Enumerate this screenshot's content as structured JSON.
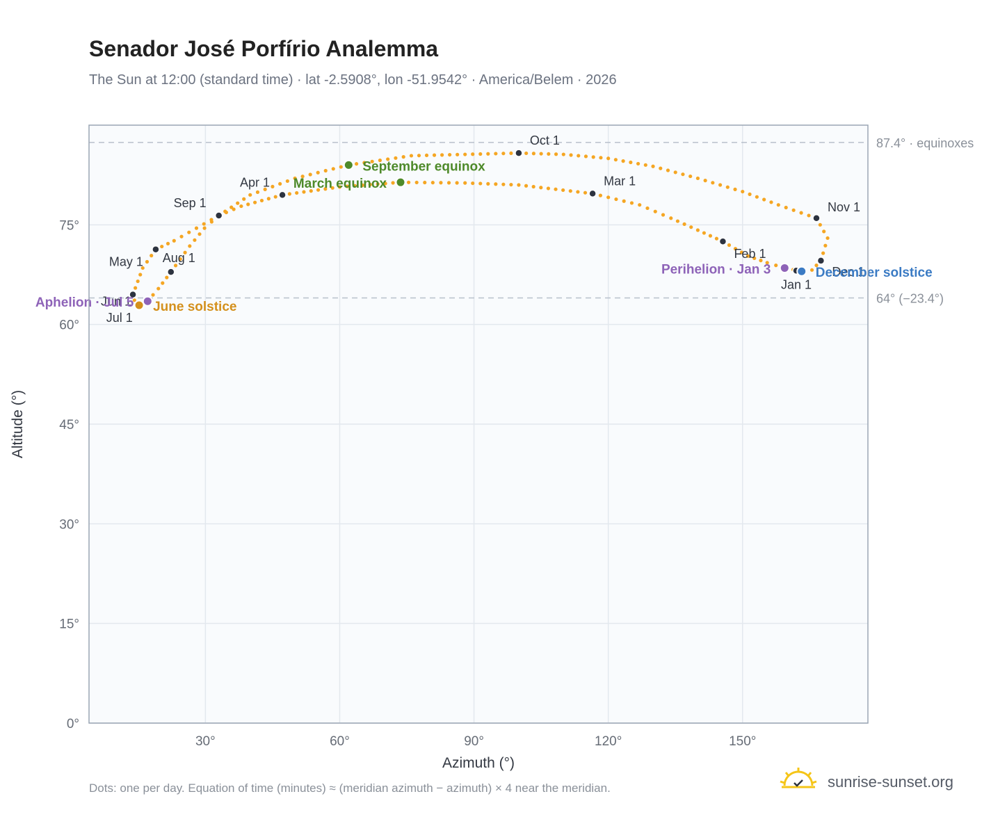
{
  "header": {
    "title": "Senador José Porfírio Analemma",
    "subtitle": "The Sun at 12:00 (standard time) · lat -2.5908°, lon -51.9542° · America/Belem · 2026"
  },
  "footer": {
    "note": "Dots: one per day. Equation of time (minutes) ≈ (meridian azimuth − azimuth) × 4 near the meridian.",
    "brand": "sunrise-sunset.org"
  },
  "colors": {
    "curve": "#f5a623",
    "month_dot": "#2d3340",
    "equinox": "#4e8a2a",
    "june_solstice": "#d4901c",
    "december_solstice": "#3b7bc4",
    "apsis": "#8e63b8",
    "grid": "#e3e8ee",
    "plot_bg": "#f9fbfd",
    "border": "#9aa5b4"
  },
  "chart_data": {
    "type": "scatter",
    "xlabel": "Azimuth (°)",
    "ylabel": "Altitude (°)",
    "xlim": [
      4,
      178
    ],
    "ylim": [
      0,
      90
    ],
    "xticks": [
      30,
      60,
      90,
      120,
      150
    ],
    "yticks": [
      0,
      15,
      30,
      45,
      60,
      75
    ],
    "xtick_labels": [
      "30°",
      "60°",
      "90°",
      "120°",
      "150°"
    ],
    "ytick_labels": [
      "0°",
      "15°",
      "30°",
      "45°",
      "60°",
      "75°"
    ],
    "grid": true,
    "reference_lines": [
      {
        "y": 87.4,
        "label": "87.4° · equinoxes"
      },
      {
        "y": 64.0,
        "label": "64° (−23.4°)"
      }
    ],
    "series": [
      {
        "points": [
          [
            163.2,
            68.0
          ],
          [
            159.4,
            68.5
          ],
          [
            155.5,
            69.3
          ],
          [
            151.2,
            70.3
          ],
          [
            145.6,
            72.5
          ],
          [
            140.0,
            74.2
          ],
          [
            134.0,
            76.0
          ],
          [
            127.0,
            78.0
          ],
          [
            116.5,
            79.7
          ],
          [
            100.0,
            81.0
          ],
          [
            88.0,
            81.3
          ],
          [
            73.6,
            81.4
          ],
          [
            60.0,
            80.7
          ],
          [
            47.2,
            79.5
          ],
          [
            38.0,
            77.8
          ],
          [
            33.0,
            76.4
          ],
          [
            28.0,
            74.5
          ],
          [
            23.0,
            72.6
          ],
          [
            18.9,
            71.3
          ],
          [
            16.0,
            68.5
          ],
          [
            13.8,
            64.5
          ],
          [
            14.5,
            62.8
          ],
          [
            15.2,
            62.9
          ],
          [
            17.1,
            63.5
          ],
          [
            19.5,
            65.4
          ],
          [
            22.3,
            67.9
          ],
          [
            26.5,
            71.8
          ],
          [
            29.8,
            74.5
          ],
          [
            33.0,
            76.4
          ],
          [
            40.0,
            79.5
          ],
          [
            50.0,
            82.0
          ],
          [
            62.0,
            84.0
          ],
          [
            76.0,
            85.4
          ],
          [
            100.0,
            85.8
          ],
          [
            110.0,
            85.6
          ],
          [
            120.0,
            85.0
          ],
          [
            130.0,
            83.8
          ],
          [
            140.0,
            82.0
          ],
          [
            150.0,
            80.0
          ],
          [
            158.0,
            78.0
          ],
          [
            166.5,
            76.0
          ],
          [
            169.0,
            73.0
          ],
          [
            167.5,
            69.6
          ],
          [
            165.5,
            68.2
          ],
          [
            163.2,
            68.0
          ]
        ]
      }
    ],
    "month_markers": [
      {
        "label": "Jan 1",
        "x": 162.0,
        "y": 68.1
      },
      {
        "label": "Feb 1",
        "x": 145.6,
        "y": 72.5
      },
      {
        "label": "Mar 1",
        "x": 116.5,
        "y": 79.7
      },
      {
        "label": "Apr 1",
        "x": 47.2,
        "y": 79.5
      },
      {
        "label": "May 1",
        "x": 18.9,
        "y": 71.3
      },
      {
        "label": "Jun 1",
        "x": 13.8,
        "y": 64.5
      },
      {
        "label": "Jul 1",
        "x": 15.3,
        "y": 62.9
      },
      {
        "label": "Aug 1",
        "x": 22.3,
        "y": 67.9
      },
      {
        "label": "Sep 1",
        "x": 33.0,
        "y": 76.4
      },
      {
        "label": "Oct 1",
        "x": 100.0,
        "y": 85.8
      },
      {
        "label": "Nov 1",
        "x": 166.5,
        "y": 76.0
      },
      {
        "label": "Dec 1",
        "x": 167.5,
        "y": 69.6
      }
    ],
    "events": [
      {
        "label": "September equinox",
        "x": 62.0,
        "y": 84.0,
        "kind": "equinox"
      },
      {
        "label": "March equinox",
        "x": 73.6,
        "y": 81.4,
        "kind": "equinox"
      },
      {
        "label": "June solstice",
        "x": 15.2,
        "y": 62.9,
        "kind": "june_solstice"
      },
      {
        "label": "December solstice",
        "x": 163.2,
        "y": 68.0,
        "kind": "december_solstice"
      },
      {
        "label": "Perihelion · Jan 3",
        "x": 159.4,
        "y": 68.5,
        "kind": "apsis"
      },
      {
        "label": "Aphelion · Jul 5",
        "x": 17.1,
        "y": 63.5,
        "kind": "apsis"
      }
    ]
  }
}
